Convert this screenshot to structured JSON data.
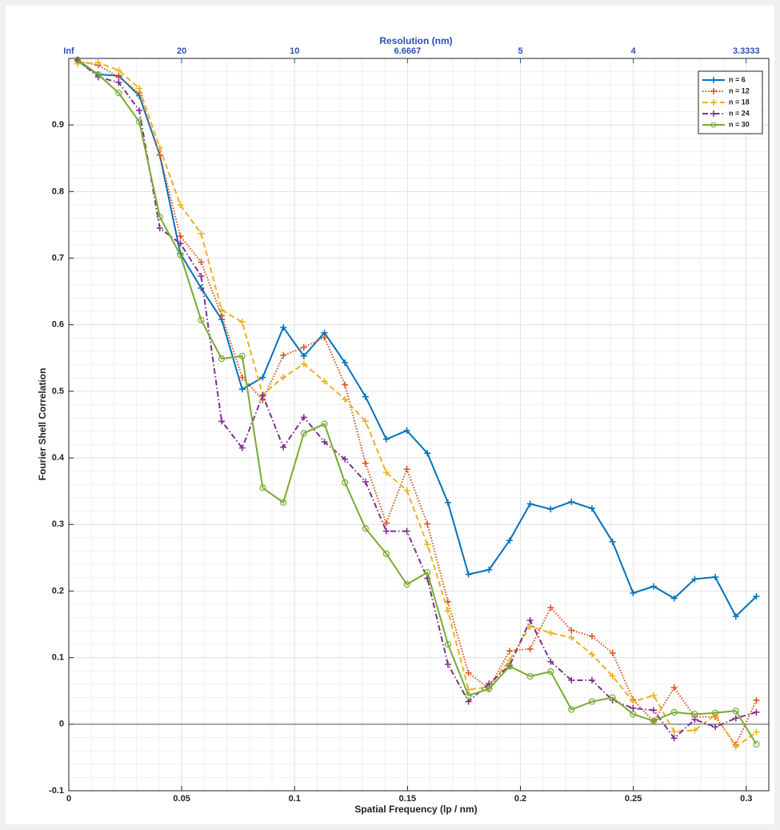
{
  "chart_data": {
    "type": "line",
    "xlabel": "Spatial Frequency (lp / nm)",
    "ylabel": "Fourier Shell Correlation",
    "x2label": "Resolution (nm)",
    "x": [
      0.0039,
      0.013,
      0.0221,
      0.0312,
      0.0403,
      0.0494,
      0.0586,
      0.0677,
      0.0768,
      0.0859,
      0.095,
      0.1041,
      0.1132,
      0.1223,
      0.1314,
      0.1406,
      0.1497,
      0.1588,
      0.1679,
      0.177,
      0.1861,
      0.1952,
      0.2043,
      0.2134,
      0.2226,
      0.2317,
      0.2408,
      0.2499,
      0.259,
      0.2681,
      0.2772,
      0.2863,
      0.2954,
      0.3045
    ],
    "series": [
      {
        "name": "n = 6",
        "color": "#0072BD",
        "style": "solid",
        "marker": "plus",
        "values": [
          0.996,
          0.976,
          0.974,
          0.944,
          0.855,
          0.707,
          0.655,
          0.608,
          0.503,
          0.521,
          0.596,
          0.553,
          0.588,
          0.543,
          0.492,
          0.428,
          0.441,
          0.407,
          0.333,
          0.225,
          0.232,
          0.276,
          0.331,
          0.323,
          0.334,
          0.324,
          0.274,
          0.197,
          0.207,
          0.189,
          0.218,
          0.221,
          0.162,
          0.192
        ]
      },
      {
        "name": "n = 12",
        "color": "#D95319",
        "style": "dotted",
        "marker": "plus",
        "values": [
          0.996,
          0.99,
          0.972,
          0.948,
          0.855,
          0.733,
          0.694,
          0.614,
          0.521,
          0.487,
          0.554,
          0.566,
          0.581,
          0.51,
          0.392,
          0.302,
          0.383,
          0.301,
          0.184,
          0.077,
          0.054,
          0.11,
          0.113,
          0.175,
          0.141,
          0.132,
          0.107,
          0.037,
          0.004,
          0.055,
          0.011,
          0.011,
          -0.031,
          0.036
        ]
      },
      {
        "name": "n = 18",
        "color": "#EDB120",
        "style": "dashed",
        "marker": "plus",
        "values": [
          0.992,
          0.994,
          0.982,
          0.955,
          0.866,
          0.78,
          0.737,
          0.622,
          0.604,
          0.495,
          0.521,
          0.541,
          0.515,
          0.488,
          0.455,
          0.378,
          0.351,
          0.27,
          0.17,
          0.052,
          0.056,
          0.096,
          0.147,
          0.137,
          0.13,
          0.105,
          0.072,
          0.034,
          0.043,
          -0.011,
          -0.009,
          0.014,
          -0.034,
          -0.012
        ]
      },
      {
        "name": "n = 24",
        "color": "#7E2F8E",
        "style": "dashdot",
        "marker": "plus",
        "values": [
          0.998,
          0.972,
          0.964,
          0.922,
          0.745,
          0.722,
          0.673,
          0.455,
          0.415,
          0.494,
          0.416,
          0.461,
          0.424,
          0.398,
          0.364,
          0.29,
          0.29,
          0.219,
          0.09,
          0.034,
          0.061,
          0.088,
          0.156,
          0.094,
          0.066,
          0.066,
          0.036,
          0.024,
          0.021,
          -0.021,
          0.007,
          -0.004,
          0.009,
          0.018
        ]
      },
      {
        "name": "n = 30",
        "color": "#77AC30",
        "style": "solid",
        "marker": "circle",
        "values": [
          0.998,
          0.976,
          0.948,
          0.905,
          0.762,
          0.705,
          0.607,
          0.549,
          0.553,
          0.355,
          0.333,
          0.437,
          0.451,
          0.363,
          0.294,
          0.256,
          0.21,
          0.228,
          0.12,
          0.043,
          0.053,
          0.087,
          0.072,
          0.079,
          0.022,
          0.034,
          0.04,
          0.015,
          0.005,
          0.018,
          0.015,
          0.017,
          0.02,
          -0.03
        ]
      }
    ],
    "xlim": [
      0,
      0.31
    ],
    "ylim": [
      -0.1,
      1
    ],
    "xticks": [
      0,
      0.05,
      0.1,
      0.15,
      0.2,
      0.25,
      0.3
    ],
    "yticks": [
      -0.1,
      0,
      0.1,
      0.2,
      0.3,
      0.4,
      0.5,
      0.6,
      0.7,
      0.8,
      0.9
    ],
    "x2ticks": [
      {
        "value": 0,
        "label": "Inf"
      },
      {
        "value": 0.05,
        "label": "20"
      },
      {
        "value": 0.1,
        "label": "10"
      },
      {
        "value": 0.15,
        "label": "6.6667"
      },
      {
        "value": 0.2,
        "label": "5"
      },
      {
        "value": 0.25,
        "label": "4"
      },
      {
        "value": 0.3,
        "label": "3.3333"
      }
    ],
    "grid": true,
    "minor_grid": true,
    "legend": "northeast"
  }
}
